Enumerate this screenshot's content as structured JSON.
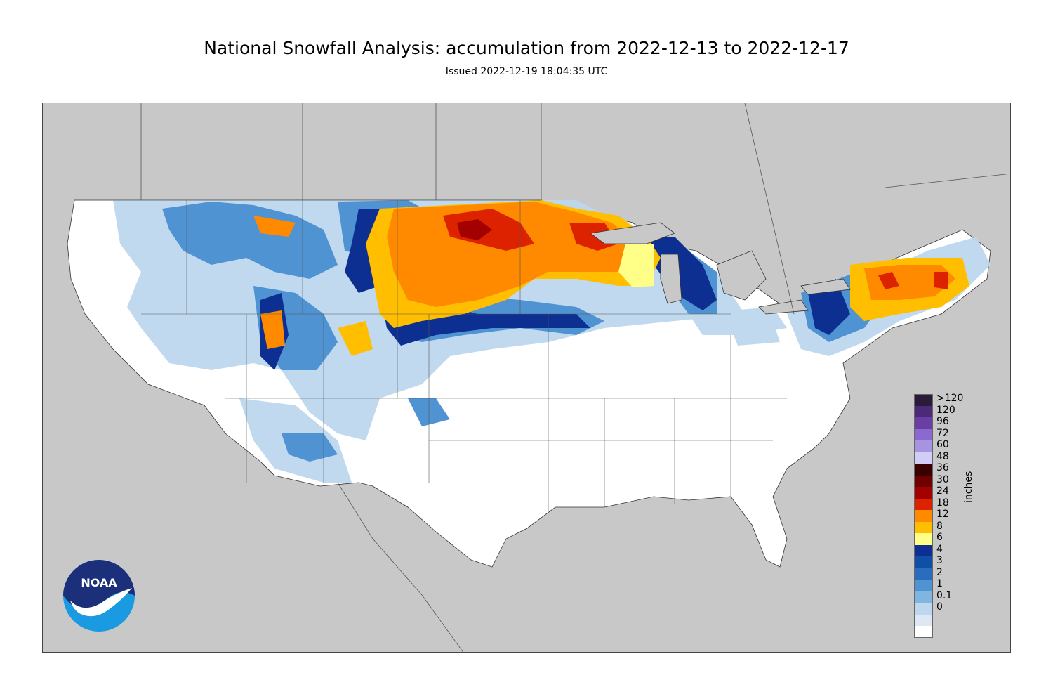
{
  "title": "National Snowfall Analysis: accumulation from 2022-12-13 to 2022-12-17",
  "subtitle": "Issued 2022-12-19 18:04:35 UTC",
  "legend": {
    "units_label": "inches",
    "bins": [
      {
        "label": ">120",
        "color": "#2b1b3a"
      },
      {
        "label": "120",
        "color": "#4b2a78"
      },
      {
        "label": "96",
        "color": "#6a3fa3"
      },
      {
        "label": "72",
        "color": "#8a6ad0"
      },
      {
        "label": "60",
        "color": "#a794e0"
      },
      {
        "label": "48",
        "color": "#d2cdf6"
      },
      {
        "label": "36",
        "color": "#3a0000"
      },
      {
        "label": "30",
        "color": "#6e0000"
      },
      {
        "label": "24",
        "color": "#a30000"
      },
      {
        "label": "18",
        "color": "#dd2200"
      },
      {
        "label": "12",
        "color": "#ff8a00"
      },
      {
        "label": "8",
        "color": "#ffbf00"
      },
      {
        "label": "6",
        "color": "#ffff88"
      },
      {
        "label": "4",
        "color": "#0d2f91"
      },
      {
        "label": "3",
        "color": "#0f4fa8"
      },
      {
        "label": "2",
        "color": "#2a6dbc"
      },
      {
        "label": "1",
        "color": "#4f93d2"
      },
      {
        "label": "0.1",
        "color": "#7fb5e0"
      },
      {
        "label": "0",
        "color": "#bdd7ee"
      },
      {
        "label": "",
        "color": "#dde8f4"
      },
      {
        "label": "",
        "color": "#ffffff"
      }
    ]
  },
  "logo": {
    "text": "NOAA",
    "icon": "noaa-logo-icon"
  },
  "colors": {
    "background_land": "#c8c8c8",
    "conus": "#ffffff",
    "light_blue": "#bdd7ee",
    "medium_blue": "#4f93d2",
    "dark_blue": "#0d2f91",
    "yellow": "#ffbf00",
    "orange": "#ff8a00",
    "red": "#dd2200",
    "dark_red": "#a30000"
  }
}
